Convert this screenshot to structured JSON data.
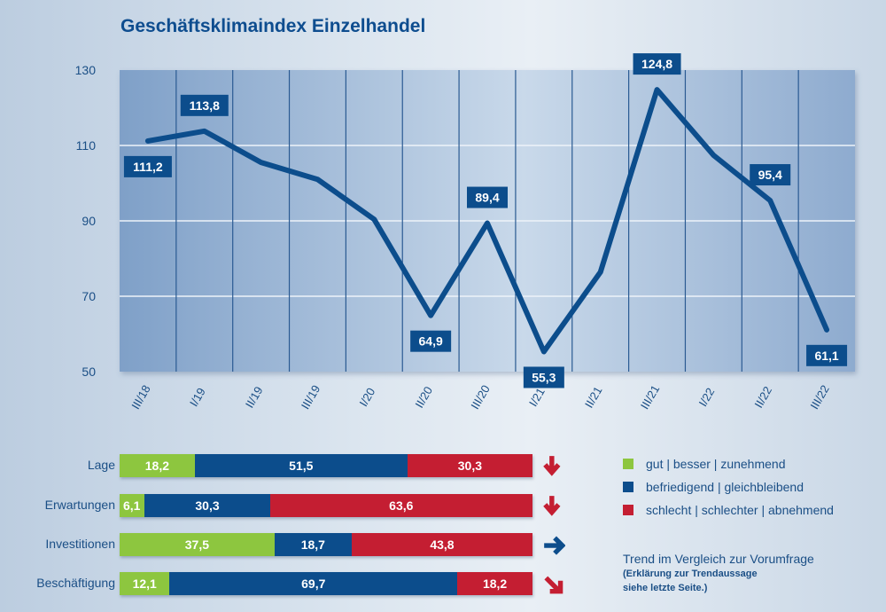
{
  "title": "Geschäftsklimaindex Einzelhandel",
  "colors": {
    "green": "#8dc63f",
    "blue": "#0c4d8c",
    "red": "#c41e32",
    "line": "#0c4d8c",
    "label_bg": "#0c4d8c"
  },
  "chart_data": [
    {
      "type": "line",
      "title": "Geschäftsklimaindex Einzelhandel",
      "xlabel": "",
      "ylabel": "",
      "ylim": [
        50,
        130
      ],
      "yticks": [
        50,
        70,
        90,
        110,
        130
      ],
      "ytick_labels": [
        "50",
        "70",
        "90",
        "110",
        "130"
      ],
      "grid": true,
      "categories": [
        "III/18",
        "I/19",
        "II/19",
        "III/19",
        "I/20",
        "II/20",
        "III/20",
        "I/21",
        "II/21",
        "III/21",
        "I/22",
        "II/22",
        "III/22"
      ],
      "series": [
        {
          "name": "Geschäftsklimaindex",
          "values": [
            111.2,
            113.8,
            105.5,
            101.0,
            90.4,
            64.9,
            89.4,
            55.3,
            76.4,
            124.8,
            107.4,
            95.4,
            61.1
          ]
        }
      ],
      "data_labels": [
        {
          "index": 0,
          "text": "111,2",
          "position": "below"
        },
        {
          "index": 1,
          "text": "113,8",
          "position": "above"
        },
        {
          "index": 5,
          "text": "64,9",
          "position": "below"
        },
        {
          "index": 6,
          "text": "89,4",
          "position": "above"
        },
        {
          "index": 7,
          "text": "55,3",
          "position": "below"
        },
        {
          "index": 9,
          "text": "124,8",
          "position": "above"
        },
        {
          "index": 11,
          "text": "95,4",
          "position": "above"
        },
        {
          "index": 12,
          "text": "61,1",
          "position": "below"
        }
      ]
    },
    {
      "type": "bar",
      "orientation": "horizontal-stacked-100",
      "categories": [
        "Lage",
        "Erwartungen",
        "Investitionen",
        "Beschäftigung"
      ],
      "series": [
        {
          "name": "gut | besser | zunehmend",
          "values": [
            18.2,
            6.1,
            37.5,
            12.1
          ],
          "labels": [
            "18,2",
            "6,1",
            "37,5",
            "12,1"
          ]
        },
        {
          "name": "befriedigend | gleichbleibend",
          "values": [
            51.5,
            30.3,
            18.7,
            69.7
          ],
          "labels": [
            "51,5",
            "30,3",
            "18,7",
            "69,7"
          ]
        },
        {
          "name": "schlecht | schlechter | abnehmend",
          "values": [
            30.3,
            63.6,
            43.8,
            18.2
          ],
          "labels": [
            "30,3",
            "63,6",
            "43,8",
            "18,2"
          ]
        }
      ],
      "trends": [
        {
          "category": "Lage",
          "direction": "down",
          "icon": "arrow-down-icon",
          "color": "#c41e32"
        },
        {
          "category": "Erwartungen",
          "direction": "down",
          "icon": "arrow-down-icon",
          "color": "#c41e32"
        },
        {
          "category": "Investitionen",
          "direction": "right",
          "icon": "arrow-right-icon",
          "color": "#0c4d8c"
        },
        {
          "category": "Beschäftigung",
          "direction": "down-right",
          "icon": "arrow-down-right-icon",
          "color": "#c41e32"
        }
      ]
    }
  ],
  "legend": [
    {
      "label": "gut | besser | zunehmend",
      "color": "#8dc63f"
    },
    {
      "label": "befriedigend | gleichbleibend",
      "color": "#0c4d8c"
    },
    {
      "label": "schlecht | schlechter | abnehmend",
      "color": "#c41e32"
    }
  ],
  "note": {
    "title": "Trend im Vergleich zur Vorumfrage",
    "line1": "(Erklärung zur Trendaussage",
    "line2": "siehe letzte Seite.)"
  }
}
